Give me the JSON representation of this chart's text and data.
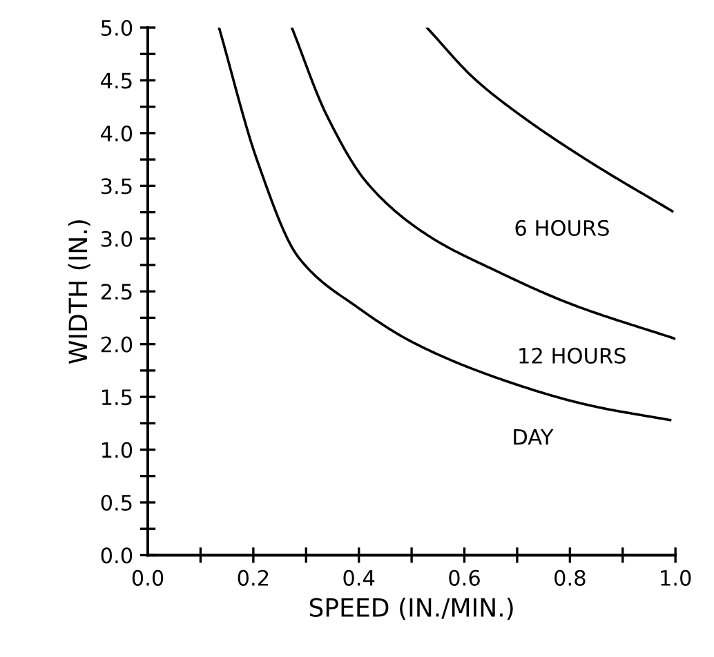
{
  "chart_data": {
    "type": "line",
    "xlabel": "SPEED (IN./MIN.)",
    "ylabel": "WIDTH (IN.)",
    "xlim": [
      0,
      1.0
    ],
    "ylim": [
      0,
      5.0
    ],
    "xticks": [
      {
        "value": 0,
        "label": "0.0"
      },
      {
        "value": 0.1,
        "label": null
      },
      {
        "value": 0.2,
        "label": "0.2"
      },
      {
        "value": 0.3,
        "label": null
      },
      {
        "value": 0.4,
        "label": "0.4"
      },
      {
        "value": 0.5,
        "label": null
      },
      {
        "value": 0.6,
        "label": "0.6"
      },
      {
        "value": 0.7,
        "label": null
      },
      {
        "value": 0.8,
        "label": "0.8"
      },
      {
        "value": 0.9,
        "label": null
      },
      {
        "value": 1.0,
        "label": "1.0"
      }
    ],
    "yticks": [
      {
        "value": 0,
        "label": "0.0"
      },
      {
        "value": 0.25,
        "label": null
      },
      {
        "value": 0.5,
        "label": "0.5"
      },
      {
        "value": 0.75,
        "label": null
      },
      {
        "value": 1.0,
        "label": "1.0"
      },
      {
        "value": 1.25,
        "label": null
      },
      {
        "value": 1.5,
        "label": "1.5"
      },
      {
        "value": 1.75,
        "label": null
      },
      {
        "value": 2.0,
        "label": "2.0"
      },
      {
        "value": 2.25,
        "label": null
      },
      {
        "value": 2.5,
        "label": "2.5"
      },
      {
        "value": 2.75,
        "label": null
      },
      {
        "value": 3.0,
        "label": "3.0"
      },
      {
        "value": 3.25,
        "label": null
      },
      {
        "value": 3.5,
        "label": "3.5"
      },
      {
        "value": 3.75,
        "label": null
      },
      {
        "value": 4.0,
        "label": "4.0"
      },
      {
        "value": 4.25,
        "label": null
      },
      {
        "value": 4.5,
        "label": "4.5"
      },
      {
        "value": 4.75,
        "label": null
      },
      {
        "value": 5.0,
        "label": "5.0"
      }
    ],
    "grid": false,
    "legend": false,
    "marker": "none",
    "line_style": "solid",
    "series": [
      {
        "name": "6 HOURS",
        "color": "#000000",
        "x": [
          0.529,
          0.618,
          0.706,
          0.837,
          0.994
        ],
        "values": [
          5.0,
          4.52,
          4.17,
          3.73,
          3.26
        ]
      },
      {
        "name": "12 HOURS",
        "color": "#000000",
        "x": [
          0.273,
          0.339,
          0.417,
          0.531,
          0.662,
          0.802,
          1.0
        ],
        "values": [
          5.0,
          4.17,
          3.52,
          3.03,
          2.69,
          2.38,
          2.05
        ]
      },
      {
        "name": "DAY",
        "color": "#000000",
        "x": [
          0.135,
          0.208,
          0.286,
          0.4,
          0.505,
          0.662,
          0.837,
          0.99
        ],
        "values": [
          5.0,
          3.73,
          2.82,
          2.34,
          2.01,
          1.68,
          1.42,
          1.28
        ]
      }
    ]
  }
}
